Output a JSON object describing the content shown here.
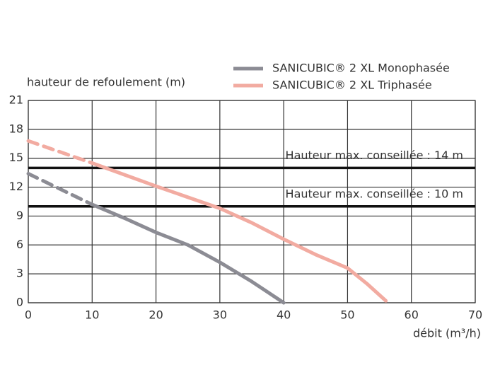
{
  "chart_data": {
    "type": "line",
    "y_axis_label": "hauteur de refoulement (m)",
    "x_axis_label": "débit (m³/h)",
    "xlim": [
      0,
      70
    ],
    "xticks": [
      0,
      10,
      20,
      30,
      40,
      50,
      60,
      70
    ],
    "ylim": [
      0,
      21
    ],
    "yticks": [
      0,
      3,
      6,
      9,
      12,
      15,
      18,
      21
    ],
    "grid": true,
    "reference_lines": [
      {
        "value": 14,
        "label": "Hauteur max. conseillée : 14 m"
      },
      {
        "value": 10,
        "label": "Hauteur max. conseillée : 10 m"
      }
    ],
    "series": [
      {
        "name": "SANICUBIC® 2 XL Monophasée",
        "color": "#8c8c94",
        "dashed_segments": 1,
        "x": [
          0,
          10,
          15,
          20,
          25,
          30,
          35,
          40
        ],
        "values": [
          13.4,
          10.2,
          8.8,
          7.3,
          6.0,
          4.2,
          2.2,
          0
        ]
      },
      {
        "name": "SANICUBIC® 2 XL Triphasée",
        "color": "#f2aba1",
        "dashed_segments": 1,
        "x": [
          0,
          10,
          20,
          30,
          35,
          40,
          45,
          50,
          53,
          56
        ],
        "values": [
          16.8,
          14.5,
          12.1,
          9.8,
          8.3,
          6.6,
          5.0,
          3.6,
          2.0,
          0.2
        ]
      }
    ]
  }
}
